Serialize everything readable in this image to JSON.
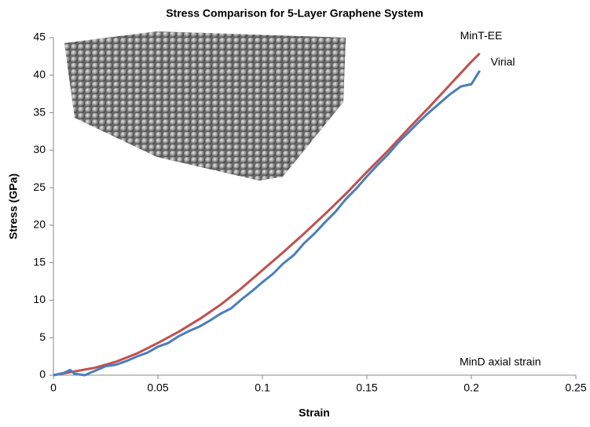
{
  "chart_data": {
    "type": "line",
    "title": "Stress Comparison for 5-Layer Graphene System",
    "x_label": "Strain",
    "y_label": "Stress (GPa)",
    "xlim": [
      0,
      0.25
    ],
    "xticks": [
      0,
      0.05,
      0.1,
      0.15,
      0.2,
      0.25
    ],
    "ylim": [
      0,
      45
    ],
    "yticks": [
      0,
      5,
      10,
      15,
      20,
      25,
      30,
      35,
      40,
      45
    ],
    "grid": false,
    "annotations": [
      "MinD axial strain"
    ],
    "series": [
      {
        "name": "MinT-EE",
        "color": "#c0504d",
        "x": [
          0,
          0.01,
          0.02,
          0.03,
          0.04,
          0.05,
          0.06,
          0.07,
          0.08,
          0.09,
          0.1,
          0.11,
          0.12,
          0.13,
          0.14,
          0.15,
          0.16,
          0.17,
          0.18,
          0.19,
          0.2,
          0.204
        ],
        "values": [
          0,
          0.5,
          1.0,
          1.8,
          2.9,
          4.3,
          5.8,
          7.5,
          9.4,
          11.6,
          14.0,
          16.4,
          18.9,
          21.5,
          24.2,
          27.1,
          29.9,
          32.9,
          35.8,
          38.8,
          41.8,
          42.9
        ]
      },
      {
        "name": "Virial",
        "color": "#4a7ebb",
        "x": [
          0,
          0.005,
          0.008,
          0.01,
          0.015,
          0.02,
          0.025,
          0.03,
          0.035,
          0.04,
          0.045,
          0.05,
          0.055,
          0.06,
          0.065,
          0.07,
          0.075,
          0.08,
          0.085,
          0.09,
          0.095,
          0.1,
          0.105,
          0.11,
          0.115,
          0.12,
          0.125,
          0.13,
          0.135,
          0.14,
          0.145,
          0.15,
          0.155,
          0.16,
          0.165,
          0.17,
          0.175,
          0.18,
          0.185,
          0.19,
          0.195,
          0.2,
          0.204
        ],
        "values": [
          0,
          0.3,
          0.7,
          0.2,
          0,
          0.6,
          1.2,
          1.4,
          1.9,
          2.5,
          3.0,
          3.8,
          4.3,
          5.2,
          5.9,
          6.5,
          7.3,
          8.2,
          8.9,
          10.1,
          11.2,
          12.4,
          13.5,
          14.9,
          16.0,
          17.6,
          18.9,
          20.4,
          21.8,
          23.5,
          24.9,
          26.5,
          28.0,
          29.4,
          31.0,
          32.4,
          33.8,
          35.1,
          36.3,
          37.5,
          38.5,
          38.8,
          40.6
        ]
      }
    ]
  }
}
